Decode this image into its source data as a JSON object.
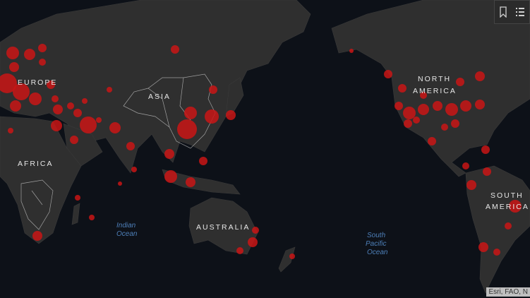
{
  "map": {
    "continent_labels": [
      "EUROPE",
      "ASIA",
      "AFRICA",
      "AUSTRALIA",
      "NORTH",
      "AMERICA",
      "SOUTH",
      "AMERICA"
    ],
    "ocean_labels": {
      "indian": [
        "Indian",
        "Ocean"
      ],
      "south_pacific": [
        "South",
        "Pacific",
        "Ocean"
      ]
    },
    "attribution": "Esri, FAO, N",
    "colors": {
      "ocean": "#0d1118",
      "land": "#2f2f2f",
      "case_marker": "#c91515"
    }
  },
  "toolbar": {
    "icons": [
      "bookmark-icon",
      "list-legend-icon"
    ]
  }
}
